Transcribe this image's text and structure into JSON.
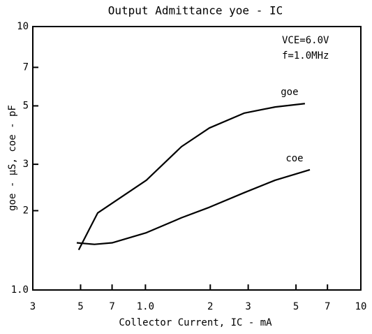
{
  "chart_data": {
    "type": "line",
    "title": "Output Admittance yoe - IC",
    "x_label": "Collector Current, IC - mA",
    "y_label": "goe - μS, coe - pF",
    "annotations": [
      "VCE=6.0V",
      "f=1.0MHz"
    ],
    "log_x": true,
    "log_y": true,
    "grid": false,
    "xlim": [
      0.3,
      10
    ],
    "ylim": [
      1,
      10
    ],
    "xticks": [
      {
        "value": 0.3,
        "label": "3"
      },
      {
        "value": 0.5,
        "label": "5"
      },
      {
        "value": 0.7,
        "label": "7"
      },
      {
        "value": 1,
        "label": "1.0"
      },
      2,
      3,
      5,
      7,
      10
    ],
    "yticks": [
      {
        "value": 1,
        "label": "1.0"
      },
      2,
      3,
      5,
      7,
      10
    ],
    "series": [
      {
        "name": "goe",
        "color": "#000000",
        "x": [
          0.49,
          0.6,
          1.01,
          1.47,
          1.98,
          2.87,
          4.0,
          5.5
        ],
        "values": [
          1.42,
          1.96,
          2.61,
          3.5,
          4.12,
          4.69,
          4.95,
          5.1
        ]
      },
      {
        "name": "coe",
        "color": "#000000",
        "x": [
          0.48,
          0.58,
          0.7,
          1.01,
          1.47,
          1.98,
          2.87,
          4.0,
          5.8
        ],
        "values": [
          1.51,
          1.49,
          1.51,
          1.65,
          1.88,
          2.06,
          2.34,
          2.61,
          2.86
        ]
      }
    ]
  }
}
